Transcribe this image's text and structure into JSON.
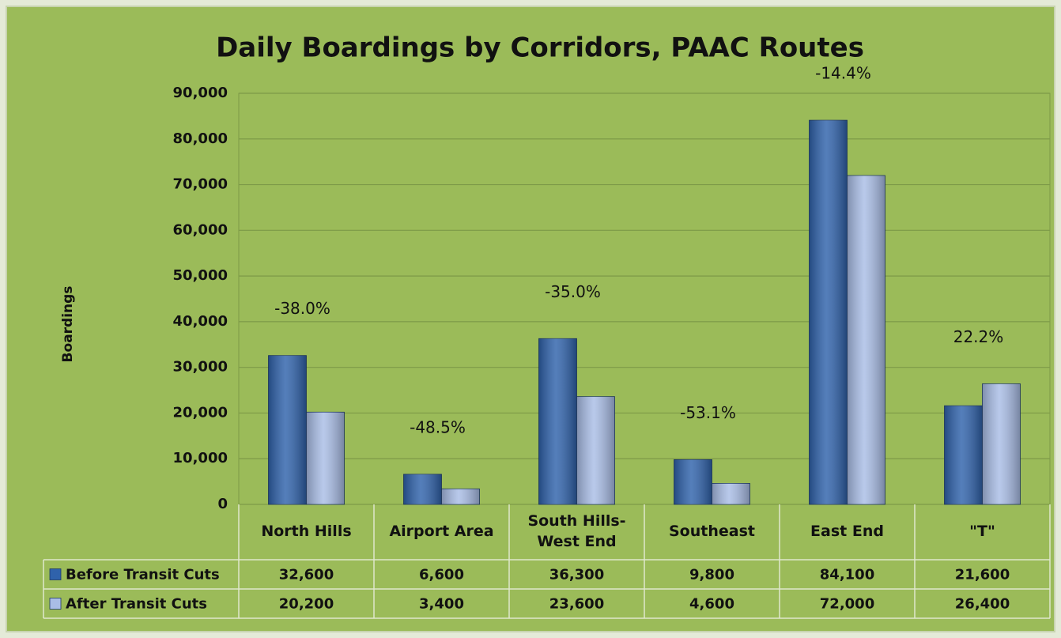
{
  "chart_data": {
    "type": "bar",
    "title": "Daily Boardings by Corridors, PAAC Routes",
    "ylabel": "Boardings",
    "categories": [
      "North Hills",
      "Airport Area",
      "South Hills-West End",
      "Southeast",
      "East End",
      "\"T\""
    ],
    "series": [
      {
        "name": "Before Transit Cuts",
        "color": "#2f62ab",
        "values": [
          32600,
          6600,
          36300,
          9800,
          84100,
          21600
        ],
        "value_labels": [
          "32,600",
          "6,600",
          "36,300",
          "9,800",
          "84,100",
          "21,600"
        ]
      },
      {
        "name": "After Transit Cuts",
        "color": "#a9bde6",
        "values": [
          20200,
          3400,
          23600,
          4600,
          72000,
          26400
        ],
        "value_labels": [
          "20,200",
          "3,400",
          "23,600",
          "4,600",
          "72,000",
          "26,400"
        ]
      }
    ],
    "annotations": [
      "-38.0%",
      "-48.5%",
      "-35.0%",
      "-53.1%",
      "-14.4%",
      "22.2%"
    ],
    "ylim": [
      0,
      90000
    ],
    "yticks": [
      0,
      {
        "value": 10000,
        "label": "10,000"
      },
      {
        "value": 20000,
        "label": "20,000"
      },
      {
        "value": 30000,
        "label": "30,000"
      },
      {
        "value": 40000,
        "label": "40,000"
      },
      {
        "value": 50000,
        "label": "50,000"
      },
      {
        "value": 60000,
        "label": "60,000"
      },
      {
        "value": 70000,
        "label": "70,000"
      },
      {
        "value": 80000,
        "label": "80,000"
      },
      {
        "value": 90000,
        "label": "90,000"
      }
    ],
    "grid": true,
    "data_table": true
  }
}
